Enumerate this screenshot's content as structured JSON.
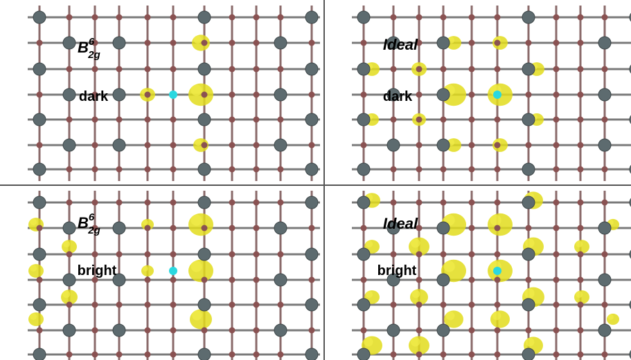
{
  "panels": [
    {
      "label": {
        "base": "B",
        "sup": "6",
        "sub": "2g"
      },
      "state": "dark"
    },
    {
      "label": {
        "base": "Ideal"
      },
      "state": "dark"
    },
    {
      "label": {
        "base": "B",
        "sup": "6",
        "sub": "2g"
      },
      "state": "bright"
    },
    {
      "label": {
        "base": "Ideal"
      },
      "state": "bright"
    }
  ]
}
